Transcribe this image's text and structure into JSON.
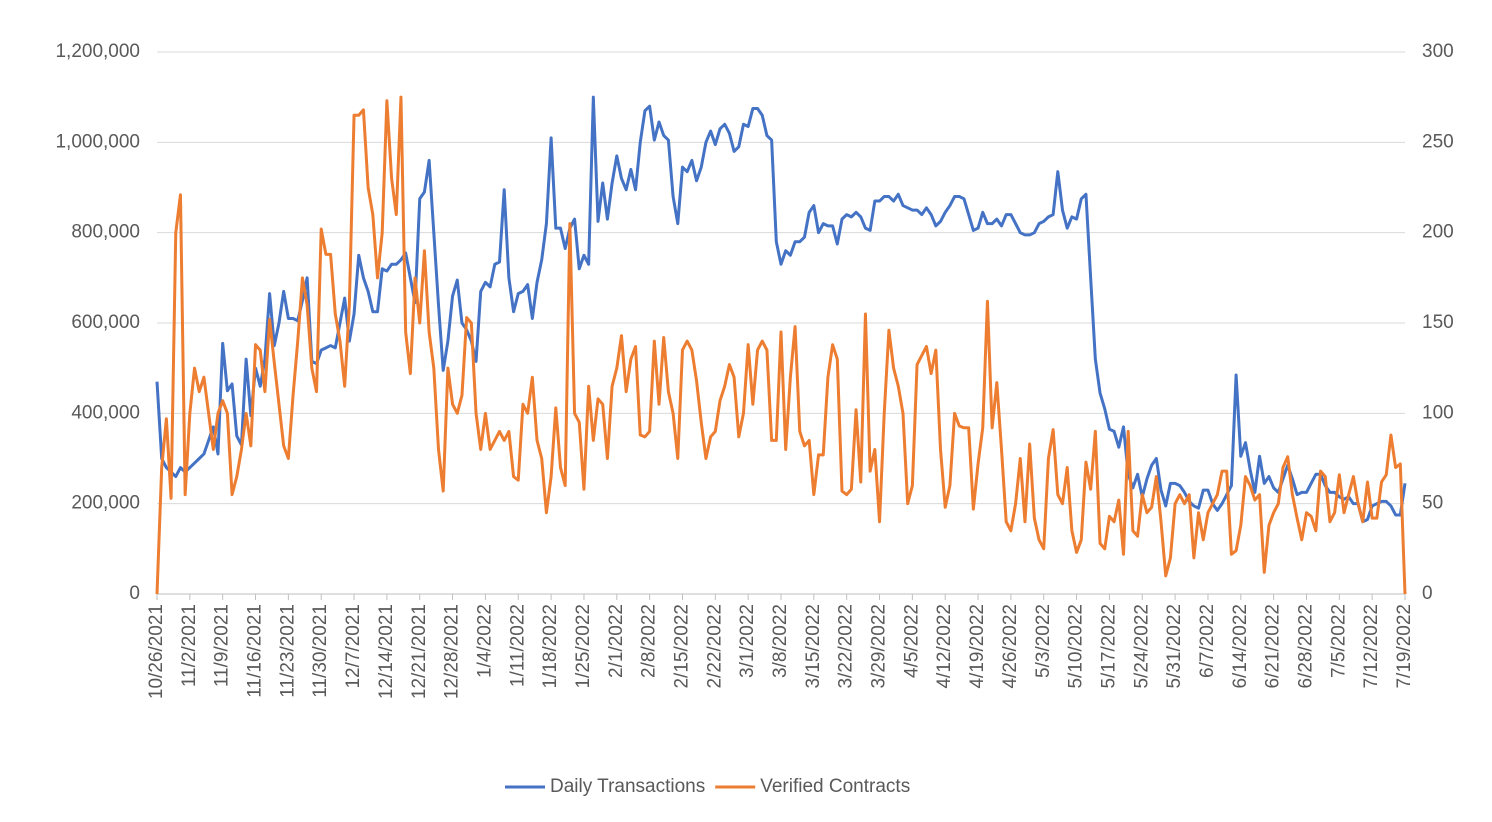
{
  "chart_data": {
    "type": "line",
    "categories": [
      "10/26/2021",
      null,
      null,
      null,
      null,
      null,
      null,
      "11/2/2021",
      null,
      null,
      null,
      null,
      null,
      null,
      "11/9/2021",
      null,
      null,
      null,
      null,
      null,
      null,
      "11/16/2021",
      null,
      null,
      null,
      null,
      null,
      null,
      "11/23/2021",
      null,
      null,
      null,
      null,
      null,
      null,
      "11/30/2021",
      null,
      null,
      null,
      null,
      null,
      null,
      "12/7/2021",
      null,
      null,
      null,
      null,
      null,
      null,
      "12/14/2021",
      null,
      null,
      null,
      null,
      null,
      null,
      "12/21/2021",
      null,
      null,
      null,
      null,
      null,
      null,
      "12/28/2021",
      null,
      null,
      null,
      null,
      null,
      null,
      "1/4/2022",
      null,
      null,
      null,
      null,
      null,
      null,
      "1/11/2022",
      null,
      null,
      null,
      null,
      null,
      null,
      "1/18/2022",
      null,
      null,
      null,
      null,
      null,
      null,
      "1/25/2022",
      null,
      null,
      null,
      null,
      null,
      null,
      "2/1/2022",
      null,
      null,
      null,
      null,
      null,
      null,
      "2/8/2022",
      null,
      null,
      null,
      null,
      null,
      null,
      "2/15/2022",
      null,
      null,
      null,
      null,
      null,
      null,
      "2/22/2022",
      null,
      null,
      null,
      null,
      null,
      null,
      "3/1/2022",
      null,
      null,
      null,
      null,
      null,
      null,
      "3/8/2022",
      null,
      null,
      null,
      null,
      null,
      null,
      "3/15/2022",
      null,
      null,
      null,
      null,
      null,
      null,
      "3/22/2022",
      null,
      null,
      null,
      null,
      null,
      null,
      "3/29/2022",
      null,
      null,
      null,
      null,
      null,
      null,
      "4/5/2022",
      null,
      null,
      null,
      null,
      null,
      null,
      "4/12/2022",
      null,
      null,
      null,
      null,
      null,
      null,
      "4/19/2022",
      null,
      null,
      null,
      null,
      null,
      null,
      "4/26/2022",
      null,
      null,
      null,
      null,
      null,
      null,
      "5/3/2022",
      null,
      null,
      null,
      null,
      null,
      null,
      "5/10/2022",
      null,
      null,
      null,
      null,
      null,
      null,
      "5/17/2022",
      null,
      null,
      null,
      null,
      null,
      null,
      "5/24/2022",
      null,
      null,
      null,
      null,
      null,
      null,
      "5/31/2022",
      null,
      null,
      null,
      null,
      null,
      null,
      "6/7/2022",
      null,
      null,
      null,
      null,
      null,
      null,
      "6/14/2022",
      null,
      null,
      null,
      null,
      null,
      null,
      "6/21/2022",
      null,
      null,
      null,
      null,
      null,
      null,
      "6/28/2022",
      null,
      null,
      null,
      null,
      null,
      null,
      "7/5/2022",
      null,
      null,
      null,
      null,
      null,
      null,
      "7/12/2022",
      null,
      null,
      null,
      null,
      null,
      null,
      "7/19/2022"
    ],
    "series": [
      {
        "name": "Daily Transactions",
        "color": "#4472c4",
        "axis": "y",
        "values": [
          470000,
          300000,
          280000,
          270000,
          260000,
          280000,
          270000,
          280000,
          290000,
          300000,
          310000,
          340000,
          370000,
          310000,
          555000,
          450000,
          465000,
          350000,
          330000,
          520000,
          395000,
          500000,
          460000,
          520000,
          665000,
          550000,
          600000,
          670000,
          610000,
          610000,
          605000,
          650000,
          700000,
          515000,
          510000,
          540000,
          545000,
          550000,
          545000,
          600000,
          655000,
          560000,
          620000,
          750000,
          700000,
          670000,
          625000,
          625000,
          720000,
          715000,
          730000,
          730000,
          740000,
          755000,
          700000,
          645000,
          875000,
          890000,
          960000,
          800000,
          640000,
          495000,
          560000,
          660000,
          695000,
          600000,
          585000,
          560000,
          515000,
          670000,
          690000,
          680000,
          730000,
          735000,
          895000,
          700000,
          625000,
          665000,
          670000,
          685000,
          610000,
          690000,
          740000,
          820000,
          1010000,
          810000,
          810000,
          765000,
          810000,
          830000,
          720000,
          750000,
          730000,
          1100000,
          825000,
          910000,
          830000,
          910000,
          970000,
          920000,
          895000,
          940000,
          895000,
          1000000,
          1070000,
          1080000,
          1005000,
          1045000,
          1015000,
          1005000,
          880000,
          820000,
          945000,
          935000,
          960000,
          915000,
          945000,
          1000000,
          1025000,
          995000,
          1030000,
          1040000,
          1020000,
          980000,
          990000,
          1040000,
          1035000,
          1075000,
          1075000,
          1060000,
          1015000,
          1005000,
          780000,
          730000,
          760000,
          750000,
          780000,
          780000,
          790000,
          845000,
          860000,
          800000,
          820000,
          815000,
          815000,
          775000,
          830000,
          840000,
          835000,
          845000,
          835000,
          810000,
          805000,
          870000,
          870000,
          880000,
          880000,
          870000,
          885000,
          860000,
          855000,
          850000,
          850000,
          840000,
          855000,
          840000,
          815000,
          825000,
          845000,
          860000,
          880000,
          880000,
          875000,
          840000,
          805000,
          810000,
          845000,
          820000,
          820000,
          830000,
          815000,
          840000,
          840000,
          820000,
          800000,
          795000,
          795000,
          800000,
          820000,
          825000,
          835000,
          840000,
          935000,
          850000,
          810000,
          835000,
          830000,
          875000,
          885000,
          700000,
          520000,
          445000,
          410000,
          365000,
          360000,
          325000,
          370000,
          265000,
          235000,
          265000,
          215000,
          255000,
          285000,
          300000,
          230000,
          195000,
          245000,
          245000,
          240000,
          225000,
          205000,
          195000,
          190000,
          230000,
          230000,
          200000,
          185000,
          200000,
          220000,
          240000,
          485000,
          305000,
          335000,
          275000,
          225000,
          305000,
          245000,
          260000,
          235000,
          225000,
          255000,
          285000,
          255000,
          220000,
          225000,
          225000,
          245000,
          265000,
          265000,
          240000,
          225000,
          225000,
          215000,
          210000,
          215000,
          200000,
          200000,
          160000,
          165000,
          195000,
          200000,
          205000,
          205000,
          195000,
          175000,
          175000,
          245000
        ]
      },
      {
        "name": "Verified Contracts",
        "color": "#ed7d31",
        "axis": "y2",
        "values": [
          0,
          70,
          97,
          53,
          200,
          221,
          55,
          100,
          125,
          112,
          120,
          100,
          80,
          100,
          107,
          100,
          55,
          65,
          80,
          100,
          82,
          138,
          135,
          112,
          152,
          128,
          105,
          82,
          75,
          110,
          140,
          175,
          160,
          125,
          112,
          202,
          188,
          188,
          155,
          140,
          115,
          160,
          265,
          265,
          268,
          225,
          210,
          175,
          200,
          273,
          230,
          210,
          275,
          145,
          122,
          175,
          150,
          190,
          145,
          125,
          80,
          57,
          125,
          105,
          100,
          110,
          153,
          150,
          100,
          80,
          100,
          80,
          85,
          90,
          85,
          90,
          65,
          63,
          105,
          100,
          120,
          85,
          75,
          45,
          65,
          103,
          70,
          60,
          205,
          100,
          95,
          58,
          115,
          85,
          108,
          105,
          75,
          115,
          125,
          143,
          112,
          130,
          137,
          88,
          87,
          90,
          140,
          105,
          142,
          112,
          100,
          75,
          135,
          140,
          135,
          118,
          95,
          75,
          87,
          90,
          107,
          115,
          127,
          120,
          87,
          100,
          138,
          105,
          135,
          140,
          135,
          85,
          85,
          145,
          80,
          120,
          148,
          90,
          82,
          85,
          55,
          77,
          77,
          120,
          138,
          130,
          57,
          55,
          58,
          102,
          62,
          155,
          68,
          80,
          40,
          100,
          146,
          125,
          115,
          100,
          50,
          60,
          127,
          132,
          137,
          122,
          135,
          80,
          48,
          60,
          100,
          93,
          92,
          92,
          47,
          72,
          92,
          162,
          92,
          117,
          80,
          40,
          35,
          50,
          75,
          40,
          83,
          42,
          30,
          25,
          75,
          91,
          55,
          50,
          70,
          35,
          23,
          30,
          73,
          58,
          90,
          28,
          25,
          43,
          40,
          52,
          22,
          90,
          35,
          32,
          55,
          45,
          48,
          65,
          40,
          10,
          20,
          50,
          55,
          50,
          55,
          20,
          45,
          30,
          45,
          50,
          55,
          68,
          68,
          22,
          24,
          38,
          65,
          60,
          52,
          55,
          12,
          38,
          45,
          50,
          70,
          76,
          55,
          42,
          30,
          45,
          43,
          35,
          68,
          65,
          40,
          45,
          66,
          45,
          55,
          65,
          50,
          40,
          62,
          42,
          42,
          62,
          66,
          88,
          70,
          72,
          0
        ]
      }
    ],
    "ylim": [
      0,
      1200000
    ],
    "yticks": [
      0,
      {
        "value": 200000,
        "label": "200,000"
      },
      {
        "value": 400000,
        "label": "400,000"
      },
      {
        "value": 600000,
        "label": "600,000"
      },
      {
        "value": 800000,
        "label": "800,000"
      },
      {
        "value": 1000000,
        "label": "1,000,000"
      },
      {
        "value": 1200000,
        "label": "1,200,000"
      }
    ],
    "y2lim": [
      0,
      300
    ],
    "y2ticks": [
      0,
      50,
      100,
      150,
      200,
      250,
      300
    ],
    "grid": true,
    "legend": "bottom"
  }
}
